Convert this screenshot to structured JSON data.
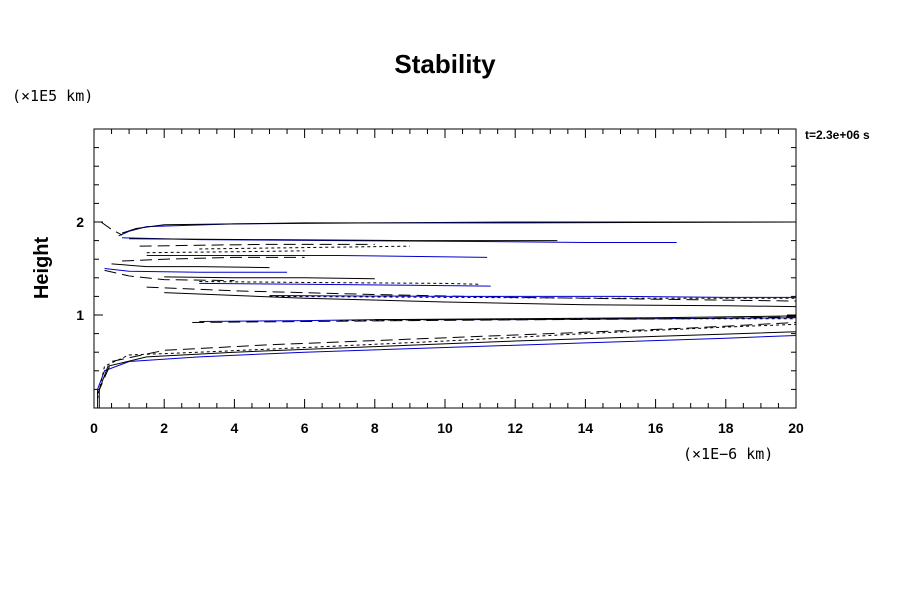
{
  "chart_data": {
    "type": "line",
    "title": "Stability",
    "xlabel": "",
    "ylabel": "Height",
    "x_unit": "(×1E−6 km)",
    "y_unit": "(×1E5 km)",
    "annotation": "t=2.3e+06 s",
    "xlim": [
      0,
      20
    ],
    "ylim": [
      0,
      3
    ],
    "x_ticks": [
      0,
      2,
      4,
      6,
      8,
      10,
      12,
      14,
      16,
      18,
      20
    ],
    "y_ticks": [
      1,
      2
    ],
    "grid": false,
    "series": [
      {
        "style": "solid",
        "color": "#0000cc",
        "points": [
          [
            0.1,
            0
          ],
          [
            0.1,
            0.2
          ],
          [
            0.3,
            0.4
          ],
          [
            1,
            0.5
          ],
          [
            3,
            0.55
          ],
          [
            6,
            0.6
          ],
          [
            10,
            0.65
          ],
          [
            14,
            0.7
          ],
          [
            18,
            0.75
          ],
          [
            20,
            0.78
          ]
        ]
      },
      {
        "style": "solid",
        "color": "#000000",
        "points": [
          [
            0.15,
            0
          ],
          [
            0.15,
            0.2
          ],
          [
            0.4,
            0.45
          ],
          [
            1.5,
            0.55
          ],
          [
            4,
            0.6
          ],
          [
            8,
            0.66
          ],
          [
            12,
            0.72
          ],
          [
            16,
            0.77
          ],
          [
            20,
            0.82
          ]
        ]
      },
      {
        "style": "dotted",
        "color": "#000000",
        "points": [
          [
            0.1,
            0.1
          ],
          [
            0.3,
            0.45
          ],
          [
            1,
            0.57
          ],
          [
            3,
            0.6
          ],
          [
            6,
            0.65
          ],
          [
            10,
            0.72
          ],
          [
            14,
            0.8
          ],
          [
            18,
            0.87
          ],
          [
            20,
            0.9
          ]
        ]
      },
      {
        "style": "dashed",
        "color": "#000000",
        "points": [
          [
            0.1,
            0.15
          ],
          [
            0.5,
            0.5
          ],
          [
            2,
            0.62
          ],
          [
            5,
            0.68
          ],
          [
            9,
            0.74
          ],
          [
            13,
            0.8
          ],
          [
            17,
            0.86
          ],
          [
            20,
            0.92
          ]
        ]
      },
      {
        "style": "solid",
        "color": "#0000cc",
        "points": [
          [
            3,
            0.93
          ],
          [
            6,
            0.94
          ],
          [
            8,
            0.95
          ],
          [
            12,
            0.95
          ],
          [
            16,
            0.96
          ],
          [
            20,
            0.97
          ]
        ]
      },
      {
        "style": "dashed",
        "color": "#000000",
        "points": [
          [
            2.8,
            0.92
          ],
          [
            6,
            0.93
          ],
          [
            9,
            0.94
          ],
          [
            13,
            0.95
          ],
          [
            17,
            0.96
          ],
          [
            20,
            0.98
          ]
        ]
      },
      {
        "style": "dotted",
        "color": "#000000",
        "points": [
          [
            7,
            0.94
          ],
          [
            10,
            0.95
          ],
          [
            14,
            0.96
          ],
          [
            20,
            0.96
          ]
        ]
      },
      {
        "style": "solid",
        "color": "#000000",
        "points": [
          [
            8,
            0.95
          ],
          [
            12,
            0.96
          ],
          [
            16,
            0.97
          ],
          [
            20,
            0.99
          ]
        ]
      },
      {
        "style": "solid",
        "color": "#0000cc",
        "points": [
          [
            0.7,
            1.85
          ],
          [
            1,
            1.9
          ],
          [
            1.5,
            1.95
          ],
          [
            4,
            1.98
          ],
          [
            8,
            1.99
          ],
          [
            12,
            2.0
          ],
          [
            16,
            2.0
          ],
          [
            20,
            2.0
          ]
        ]
      },
      {
        "style": "solid",
        "color": "#000000",
        "points": [
          [
            0.8,
            1.88
          ],
          [
            1.2,
            1.93
          ],
          [
            2,
            1.97
          ],
          [
            6,
            1.99
          ],
          [
            12,
            1.99
          ],
          [
            20,
            2.0
          ]
        ]
      },
      {
        "style": "dashed",
        "color": "#000000",
        "points": [
          [
            0.2,
            2.0
          ],
          [
            0.5,
            1.92
          ],
          [
            0.8,
            1.86
          ]
        ]
      },
      {
        "style": "solid",
        "color": "#0000cc",
        "points": [
          [
            0.8,
            1.83
          ],
          [
            3,
            1.81
          ],
          [
            7,
            1.8
          ],
          [
            11,
            1.79
          ],
          [
            14,
            1.78
          ],
          [
            16.6,
            1.78
          ]
        ]
      },
      {
        "style": "solid",
        "color": "#000000",
        "points": [
          [
            1,
            1.82
          ],
          [
            5,
            1.81
          ],
          [
            9,
            1.8
          ],
          [
            13.2,
            1.8
          ]
        ]
      },
      {
        "style": "dashed",
        "color": "#000000",
        "points": [
          [
            1.3,
            1.74
          ],
          [
            3,
            1.75
          ],
          [
            5,
            1.76
          ],
          [
            8,
            1.76
          ]
        ]
      },
      {
        "style": "dotted",
        "color": "#000000",
        "points": [
          [
            3,
            1.71
          ],
          [
            5,
            1.72
          ],
          [
            7,
            1.73
          ],
          [
            9,
            1.74
          ]
        ]
      },
      {
        "style": "solid",
        "color": "#0000cc",
        "points": [
          [
            1.5,
            1.64
          ],
          [
            4,
            1.64
          ],
          [
            7,
            1.64
          ],
          [
            11.2,
            1.62
          ]
        ]
      },
      {
        "style": "dotted",
        "color": "#000000",
        "points": [
          [
            1.5,
            1.67
          ],
          [
            4,
            1.68
          ],
          [
            6,
            1.69
          ]
        ]
      },
      {
        "style": "dashed",
        "color": "#000000",
        "points": [
          [
            0.8,
            1.58
          ],
          [
            2,
            1.6
          ],
          [
            4,
            1.62
          ],
          [
            6,
            1.62
          ]
        ]
      },
      {
        "style": "solid",
        "color": "#000000",
        "points": [
          [
            0.5,
            1.55
          ],
          [
            1.5,
            1.52
          ],
          [
            3,
            1.52
          ],
          [
            5,
            1.51
          ]
        ]
      },
      {
        "style": "solid",
        "color": "#0000cc",
        "points": [
          [
            0.3,
            1.5
          ],
          [
            1,
            1.47
          ],
          [
            3,
            1.46
          ],
          [
            5.5,
            1.46
          ]
        ]
      },
      {
        "style": "solid",
        "color": "#000000",
        "points": [
          [
            2,
            1.41
          ],
          [
            4,
            1.4
          ],
          [
            6,
            1.4
          ],
          [
            8,
            1.39
          ]
        ]
      },
      {
        "style": "dashed",
        "color": "#000000",
        "points": [
          [
            0.3,
            1.48
          ],
          [
            1,
            1.42
          ],
          [
            2,
            1.38
          ],
          [
            4,
            1.37
          ]
        ]
      },
      {
        "style": "dotted",
        "color": "#000000",
        "points": [
          [
            3,
            1.36
          ],
          [
            6,
            1.35
          ],
          [
            10,
            1.34
          ],
          [
            11,
            1.33
          ]
        ]
      },
      {
        "style": "solid",
        "color": "#0000cc",
        "points": [
          [
            3,
            1.34
          ],
          [
            6,
            1.33
          ],
          [
            9,
            1.32
          ],
          [
            11.3,
            1.31
          ]
        ]
      },
      {
        "style": "dashed",
        "color": "#000000",
        "points": [
          [
            1.5,
            1.3
          ],
          [
            4,
            1.26
          ],
          [
            8,
            1.22
          ],
          [
            12,
            1.19
          ],
          [
            16,
            1.17
          ],
          [
            20,
            1.15
          ]
        ]
      },
      {
        "style": "solid",
        "color": "#000000",
        "points": [
          [
            2,
            1.24
          ],
          [
            6,
            1.18
          ],
          [
            10,
            1.14
          ],
          [
            14,
            1.11
          ],
          [
            18,
            1.1
          ],
          [
            20,
            1.09
          ]
        ]
      },
      {
        "style": "dotted",
        "color": "#000000",
        "points": [
          [
            5,
            1.2
          ],
          [
            10,
            1.19
          ],
          [
            15,
            1.18
          ],
          [
            20,
            1.18
          ]
        ]
      },
      {
        "style": "solid",
        "color": "#0000cc",
        "points": [
          [
            5,
            1.21
          ],
          [
            10,
            1.2
          ],
          [
            15,
            1.2
          ],
          [
            18,
            1.19
          ],
          [
            20,
            1.19
          ]
        ]
      }
    ]
  }
}
